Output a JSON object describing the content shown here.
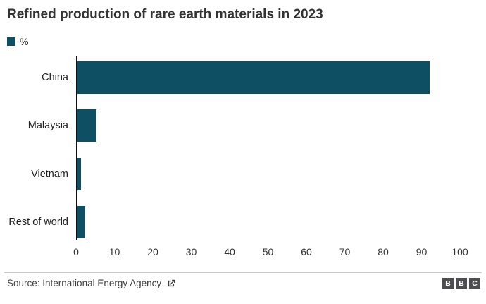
{
  "title": "Refined production of rare earth materials in 2023",
  "legend": {
    "label": "%",
    "swatch_color": "#0e4f63"
  },
  "chart_data": {
    "type": "bar",
    "orientation": "horizontal",
    "title": "Refined production of rare earth materials in 2023",
    "series_name": "%",
    "categories": [
      "China",
      "Malaysia",
      "Vietnam",
      "Rest of world"
    ],
    "values": [
      92,
      5,
      1,
      2
    ],
    "xlim": [
      0,
      100
    ],
    "x_ticks": [
      0,
      10,
      20,
      30,
      40,
      50,
      60,
      70,
      80,
      90,
      100
    ],
    "xlabel": "",
    "ylabel": "",
    "grid": false,
    "legend_position": "top-left",
    "bar_color": "#0e4f63",
    "axis_line_color": "#111111"
  },
  "footer": {
    "source_label": "Source: International Energy Agency",
    "external_link_icon": "external-link",
    "logo": {
      "letters": [
        "B",
        "B",
        "C"
      ],
      "block_color": "#4d4d50"
    }
  }
}
